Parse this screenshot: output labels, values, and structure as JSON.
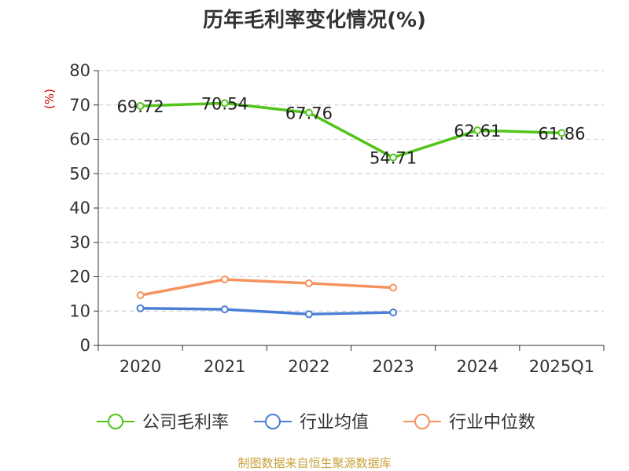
{
  "chart_data": {
    "type": "line",
    "title": "历年毛利率变化情况(%)",
    "ylabel": "(%)",
    "xlabel": "",
    "categories": [
      "2020",
      "2021",
      "2022",
      "2023",
      "2024",
      "2025Q1"
    ],
    "ylim": [
      0,
      80
    ],
    "yticks": [
      "0",
      "10",
      "20",
      "30",
      "40",
      "50",
      "60",
      "70",
      "80"
    ],
    "grid": true,
    "legend_position": "bottom",
    "series": [
      {
        "name": "公司毛利率",
        "color": "#52c41a",
        "values": [
          69.72,
          70.54,
          67.76,
          54.71,
          62.61,
          61.86
        ],
        "labels": [
          "69.72",
          "70.54",
          "67.76",
          "54.71",
          "62.61",
          "61.86"
        ]
      },
      {
        "name": "行业均值",
        "color": "#4a7fd6",
        "values": [
          10.8,
          10.5,
          9.1,
          9.6,
          null,
          null
        ]
      },
      {
        "name": "行业中位数",
        "color": "#f5925e",
        "values": [
          14.6,
          19.2,
          18.1,
          16.8,
          null,
          null
        ]
      }
    ]
  },
  "footer": {
    "source": "制图数据来自恒生聚源数据库"
  }
}
